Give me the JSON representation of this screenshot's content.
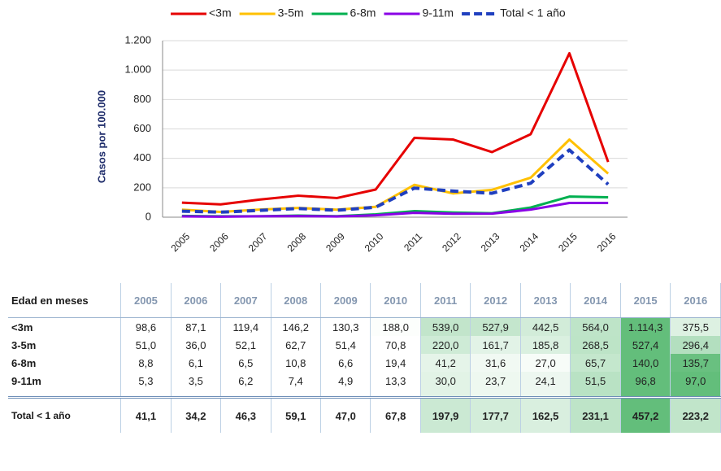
{
  "chart_data": {
    "type": "line",
    "y_label": "Casos por 100.000",
    "categories": [
      "2005",
      "2006",
      "2007",
      "2008",
      "2009",
      "2010",
      "2011",
      "2012",
      "2013",
      "2014",
      "2015",
      "2016"
    ],
    "series": [
      {
        "name": "<3m",
        "color": "#e60000",
        "style": "solid",
        "values": [
          98.6,
          87.1,
          119.4,
          146.2,
          130.3,
          188.0,
          539.0,
          527.9,
          442.5,
          564.0,
          1114.3,
          375.5
        ]
      },
      {
        "name": "3-5m",
        "color": "#ffc000",
        "style": "solid",
        "values": [
          51.0,
          36.0,
          52.1,
          62.7,
          51.4,
          70.8,
          220.0,
          161.7,
          185.8,
          268.5,
          527.4,
          296.4
        ]
      },
      {
        "name": "6-8m",
        "color": "#00b050",
        "style": "solid",
        "values": [
          8.8,
          6.1,
          6.5,
          10.8,
          6.6,
          19.4,
          41.2,
          31.6,
          27.0,
          65.7,
          140.0,
          135.7
        ]
      },
      {
        "name": "9-11m",
        "color": "#8a00e6",
        "style": "solid",
        "values": [
          5.3,
          3.5,
          6.2,
          7.4,
          4.9,
          13.3,
          30.0,
          23.7,
          24.1,
          51.5,
          96.8,
          97.0
        ]
      },
      {
        "name": "Total < 1 año",
        "color": "#1f3fbf",
        "style": "dashed",
        "values": [
          41.1,
          34.2,
          46.3,
          59.1,
          47.0,
          67.8,
          197.9,
          177.7,
          162.5,
          231.1,
          457.2,
          223.2
        ]
      }
    ],
    "ylim": [
      0,
      1200
    ],
    "yticks": [
      0,
      200,
      400,
      600,
      800,
      {
        "value": 1000,
        "label": "1.000"
      },
      {
        "value": 1200,
        "label": "1.200"
      }
    ],
    "grid": true
  },
  "table": {
    "header": [
      "Edad en meses",
      "2005",
      "2006",
      "2007",
      "2008",
      "2009",
      "2010",
      "2011",
      "2012",
      "2013",
      "2014",
      "2015",
      "2016"
    ],
    "rows": [
      [
        "<3m",
        "98,6",
        "87,1",
        "119,4",
        "146,2",
        "130,3",
        "188,0",
        "539,0",
        "527,9",
        "442,5",
        "564,0",
        "1.114,3",
        "375,5"
      ],
      [
        "3-5m",
        "51,0",
        "36,0",
        "52,1",
        "62,7",
        "51,4",
        "70,8",
        "220,0",
        "161,7",
        "185,8",
        "268,5",
        "527,4",
        "296,4"
      ],
      [
        "6-8m",
        "8,8",
        "6,1",
        "6,5",
        "10,8",
        "6,6",
        "19,4",
        "41,2",
        "31,6",
        "27,0",
        "65,7",
        "140,0",
        "135,7"
      ],
      [
        "9-11m",
        "5,3",
        "3,5",
        "6,2",
        "7,4",
        "4,9",
        "13,3",
        "30,0",
        "23,7",
        "24,1",
        "51,5",
        "96,8",
        "97,0"
      ],
      [
        "Total < 1 año",
        "41,1",
        "34,2",
        "46,3",
        "59,1",
        "47,0",
        "67,8",
        "197,9",
        "177,7",
        "162,5",
        "231,1",
        "457,2",
        "223,2"
      ]
    ]
  }
}
